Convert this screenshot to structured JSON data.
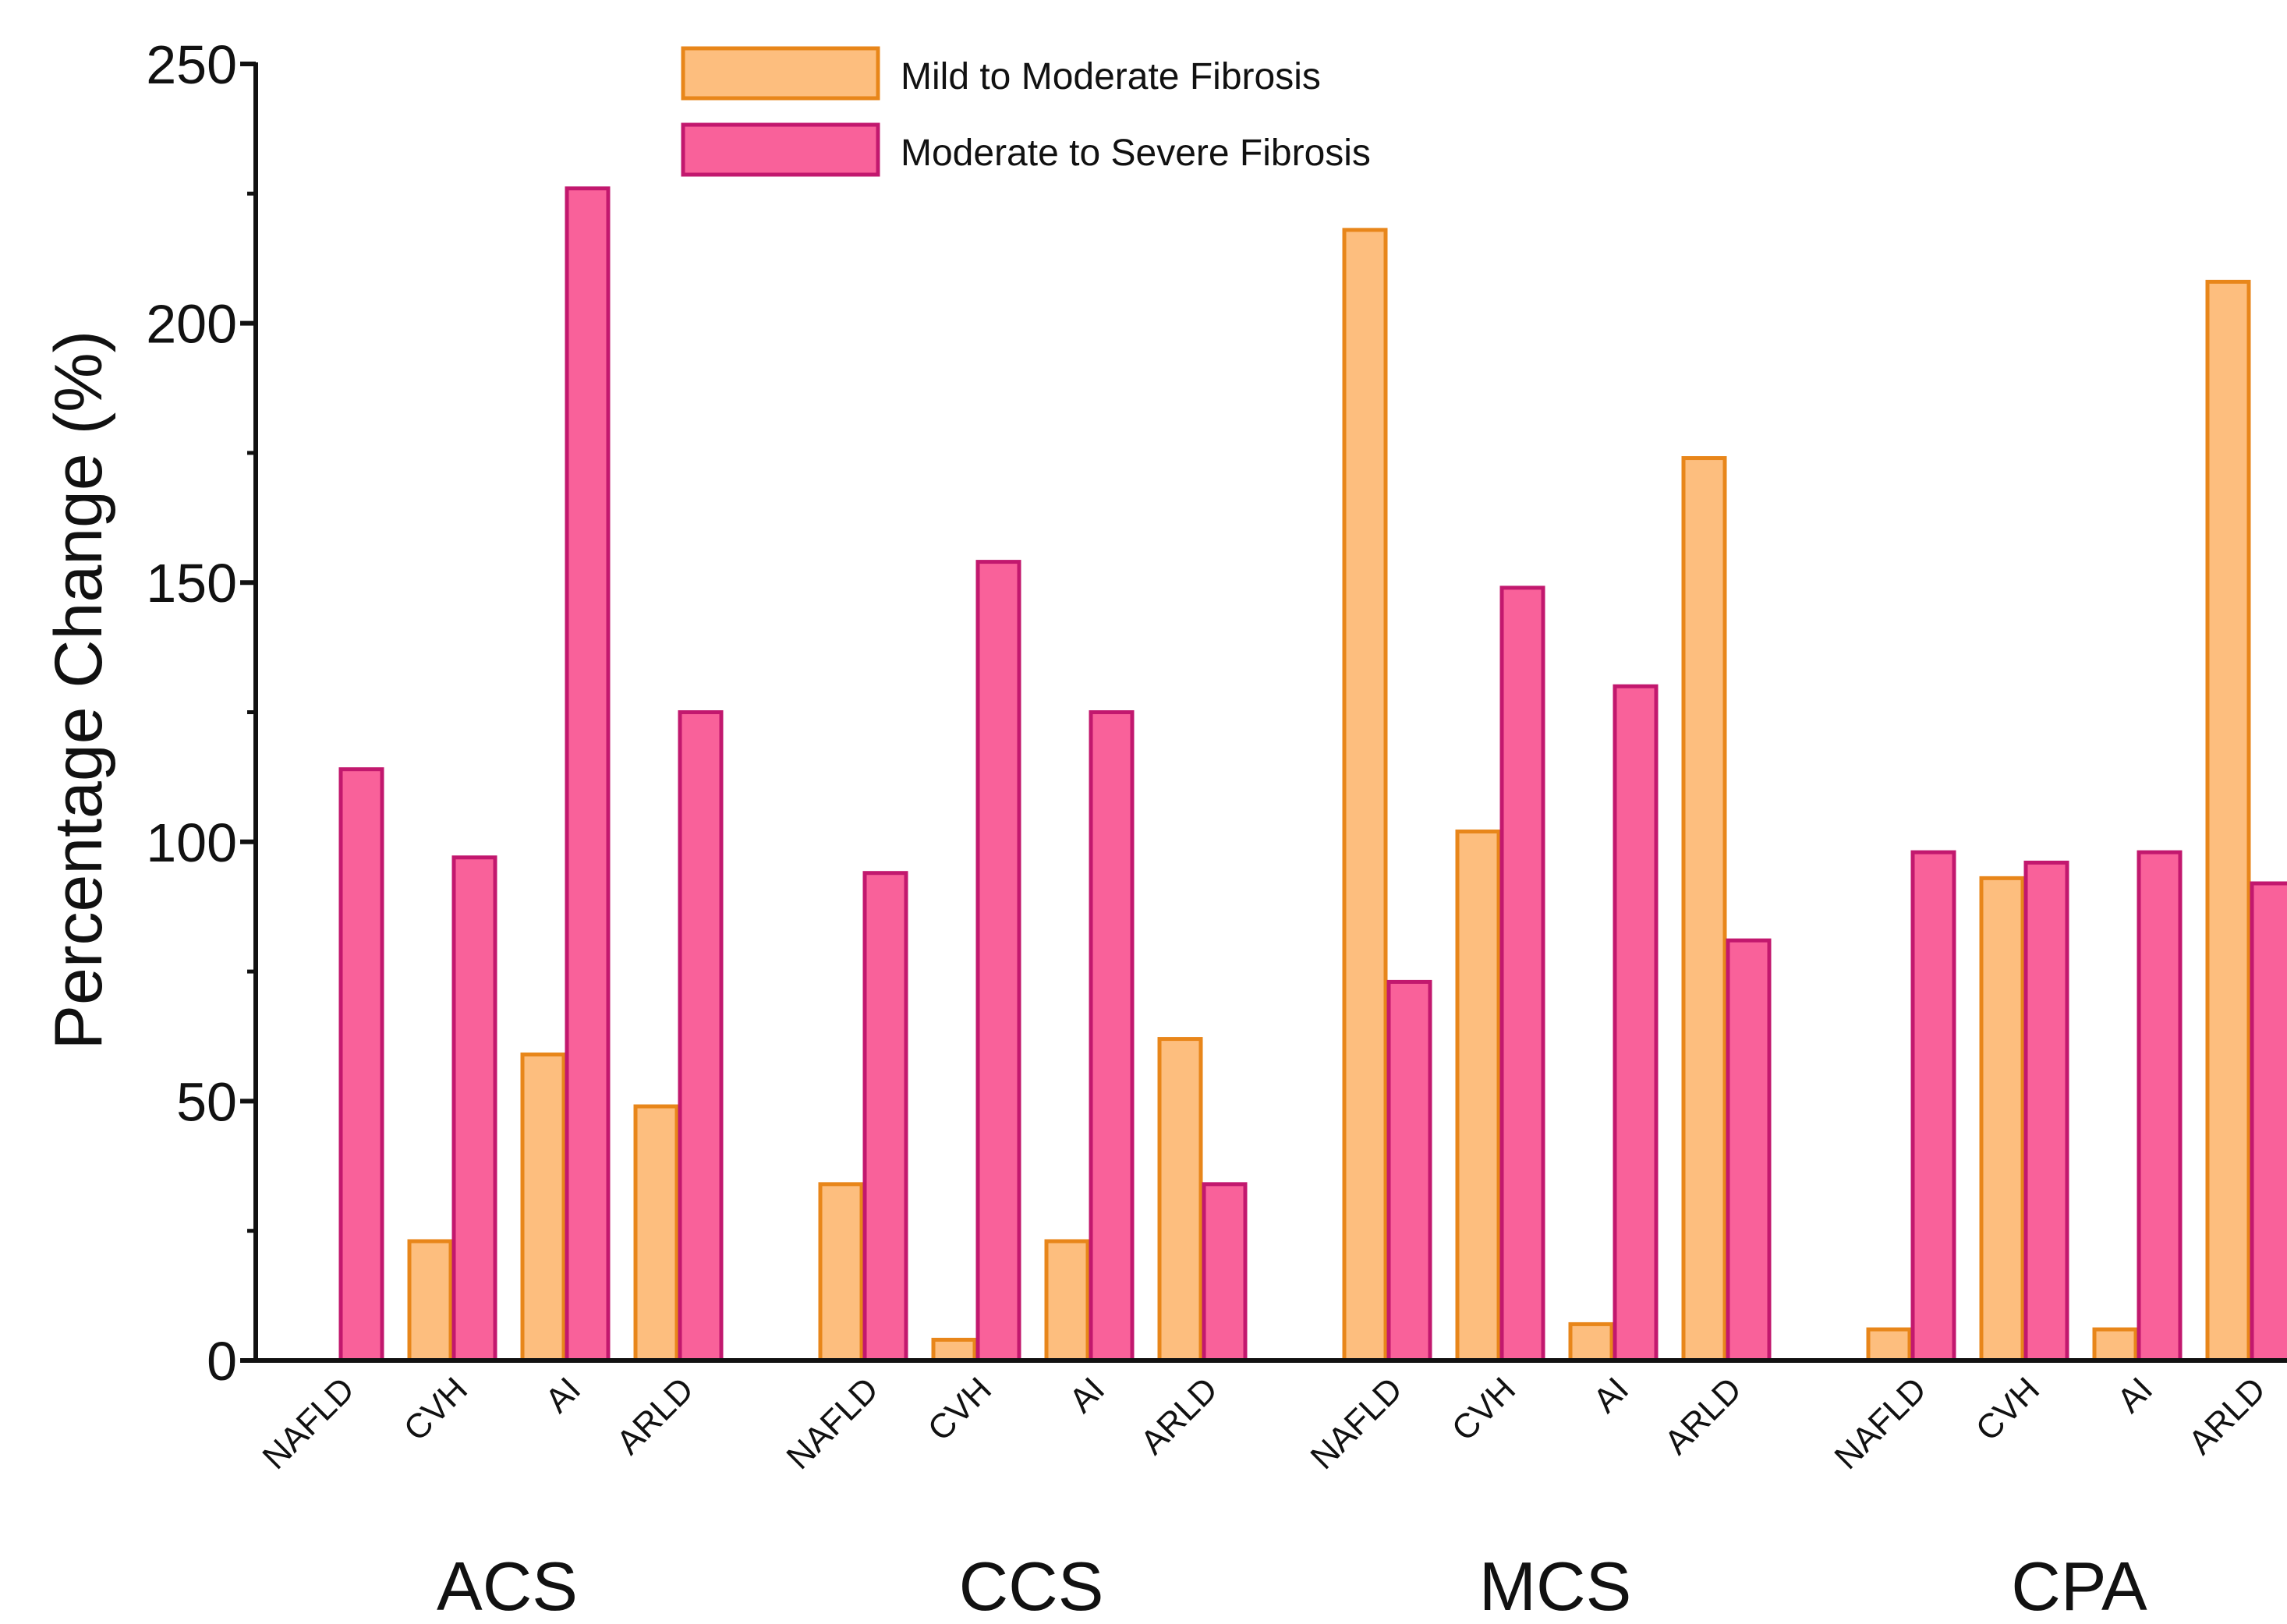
{
  "chart_data": {
    "type": "bar",
    "title": "",
    "ylabel": "Percentage Change (%)",
    "xlabel": "",
    "ylim": [
      0,
      250
    ],
    "yticks": [
      0,
      50,
      100,
      150,
      200,
      250
    ],
    "grid": false,
    "legend_position": "top-center",
    "groups": [
      "ACS",
      "CCS",
      "MCS",
      "CPA"
    ],
    "categories": [
      "NAFLD",
      "CVH",
      "AI",
      "ARLD"
    ],
    "series": [
      {
        "name": "Mild to Moderate Fibrosis",
        "fill": "#FDBE7E",
        "stroke": "#E8861A",
        "values": [
          [
            0,
            23,
            59,
            49
          ],
          [
            34,
            4,
            23,
            62
          ],
          [
            218,
            102,
            7,
            174
          ],
          [
            6,
            93,
            6,
            208
          ]
        ]
      },
      {
        "name": "Moderate to Severe Fibrosis",
        "fill": "#F9619A",
        "stroke": "#C2186E",
        "values": [
          [
            114,
            97,
            226,
            125
          ],
          [
            94,
            154,
            125,
            34
          ],
          [
            73,
            149,
            130,
            81
          ],
          [
            98,
            96,
            98,
            92
          ]
        ]
      }
    ]
  }
}
